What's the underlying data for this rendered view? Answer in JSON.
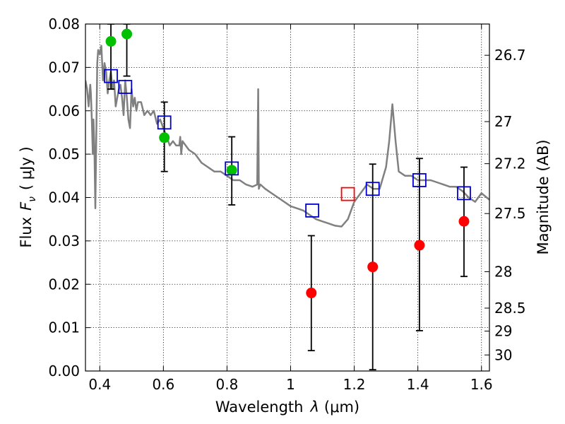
{
  "chart_data": {
    "type": "scatter",
    "xlabel_text": "Wavelength",
    "xlabel_symbol": "λ",
    "xlabel_unit": "(μm)",
    "ylabel_text": "Flux",
    "ylabel_symbol": "F",
    "ylabel_symbol_sub": "ν",
    "ylabel_unit": "( μJy )",
    "y2label": "Magnitude (AB)",
    "xlim": [
      0.355,
      1.625
    ],
    "ylim": [
      0.0,
      0.08
    ],
    "grid": true,
    "xticks": [
      {
        "value": 0.4,
        "label": "0.4"
      },
      {
        "value": 0.6,
        "label": "0.6"
      },
      {
        "value": 0.8,
        "label": "0.8"
      },
      {
        "value": 1.0,
        "label": "1"
      },
      {
        "value": 1.2,
        "label": "1.2"
      },
      {
        "value": 1.4,
        "label": "1.4"
      },
      {
        "value": 1.6,
        "label": "1.6"
      }
    ],
    "yticks": [
      {
        "value": 0.0,
        "label": "0.00"
      },
      {
        "value": 0.01,
        "label": "0.01"
      },
      {
        "value": 0.02,
        "label": "0.02"
      },
      {
        "value": 0.03,
        "label": "0.03"
      },
      {
        "value": 0.04,
        "label": "0.04"
      },
      {
        "value": 0.05,
        "label": "0.05"
      },
      {
        "value": 0.06,
        "label": "0.06"
      },
      {
        "value": 0.07,
        "label": "0.07"
      },
      {
        "value": 0.08,
        "label": "0.08"
      }
    ],
    "y2ticks": [
      {
        "flux": 0.0728,
        "label": "26.7"
      },
      {
        "flux": 0.0575,
        "label": "27"
      },
      {
        "flux": 0.0478,
        "label": "27.2"
      },
      {
        "flux": 0.0363,
        "label": "27.5"
      },
      {
        "flux": 0.0229,
        "label": "28"
      },
      {
        "flux": 0.0145,
        "label": "28.5"
      },
      {
        "flux": 0.0092,
        "label": "29"
      },
      {
        "flux": 0.0037,
        "label": "30"
      }
    ],
    "series": [
      {
        "name": "template SED",
        "kind": "line",
        "color": "#808080",
        "x": [
          0.355,
          0.36,
          0.365,
          0.37,
          0.372,
          0.375,
          0.378,
          0.38,
          0.383,
          0.386,
          0.39,
          0.392,
          0.395,
          0.4,
          0.405,
          0.41,
          0.415,
          0.42,
          0.425,
          0.43,
          0.435,
          0.44,
          0.445,
          0.45,
          0.455,
          0.46,
          0.465,
          0.47,
          0.475,
          0.48,
          0.485,
          0.49,
          0.495,
          0.5,
          0.505,
          0.51,
          0.515,
          0.52,
          0.53,
          0.54,
          0.55,
          0.56,
          0.57,
          0.58,
          0.59,
          0.6,
          0.61,
          0.62,
          0.63,
          0.64,
          0.65,
          0.653,
          0.656,
          0.66,
          0.67,
          0.68,
          0.7,
          0.72,
          0.74,
          0.76,
          0.78,
          0.8,
          0.82,
          0.84,
          0.86,
          0.88,
          0.895,
          0.898,
          0.9,
          0.902,
          0.905,
          0.92,
          0.94,
          0.96,
          0.98,
          1.0,
          1.02,
          1.04,
          1.06,
          1.08,
          1.1,
          1.12,
          1.14,
          1.16,
          1.18,
          1.2,
          1.22,
          1.24,
          1.26,
          1.28,
          1.3,
          1.31,
          1.32,
          1.33,
          1.34,
          1.36,
          1.38,
          1.4,
          1.42,
          1.44,
          1.46,
          1.48,
          1.5,
          1.52,
          1.54,
          1.56,
          1.58,
          1.6,
          1.625
        ],
        "y": [
          0.067,
          0.065,
          0.061,
          0.066,
          0.064,
          0.058,
          0.05,
          0.058,
          0.052,
          0.0375,
          0.06,
          0.071,
          0.074,
          0.073,
          0.075,
          0.067,
          0.071,
          0.069,
          0.064,
          0.067,
          0.069,
          0.065,
          0.067,
          0.061,
          0.063,
          0.065,
          0.066,
          0.063,
          0.059,
          0.067,
          0.063,
          0.058,
          0.056,
          0.065,
          0.061,
          0.063,
          0.06,
          0.062,
          0.062,
          0.059,
          0.06,
          0.059,
          0.06,
          0.057,
          0.058,
          0.056,
          0.054,
          0.052,
          0.053,
          0.052,
          0.052,
          0.054,
          0.05,
          0.053,
          0.052,
          0.051,
          0.05,
          0.048,
          0.047,
          0.046,
          0.046,
          0.045,
          0.044,
          0.044,
          0.043,
          0.0425,
          0.043,
          0.065,
          0.042,
          0.0425,
          0.043,
          0.042,
          0.041,
          0.04,
          0.039,
          0.038,
          0.0375,
          0.037,
          0.036,
          0.035,
          0.0345,
          0.034,
          0.0335,
          0.0333,
          0.035,
          0.039,
          0.041,
          0.043,
          0.042,
          0.042,
          0.047,
          0.053,
          0.0615,
          0.053,
          0.046,
          0.045,
          0.045,
          0.044,
          0.044,
          0.044,
          0.0435,
          0.043,
          0.0425,
          0.0425,
          0.0415,
          0.04,
          0.039,
          0.041,
          0.0395
        ]
      },
      {
        "name": "green detections",
        "kind": "marker",
        "marker": "circle",
        "color": "#00c000",
        "points": [
          {
            "x": 0.435,
            "y": 0.076
          },
          {
            "x": 0.485,
            "y": 0.0777
          },
          {
            "x": 0.603,
            "y": 0.0538
          },
          {
            "x": 0.815,
            "y": 0.0463
          }
        ]
      },
      {
        "name": "red points",
        "kind": "marker",
        "marker": "circle",
        "color": "#ff0000",
        "points": [
          {
            "x": 1.065,
            "y": 0.018
          },
          {
            "x": 1.258,
            "y": 0.024
          },
          {
            "x": 1.405,
            "y": 0.029
          },
          {
            "x": 1.545,
            "y": 0.0345
          }
        ]
      },
      {
        "name": "model photometry",
        "kind": "marker",
        "marker": "square",
        "color": "#0000cc",
        "points": [
          {
            "x": 0.435,
            "y": 0.068
          },
          {
            "x": 0.48,
            "y": 0.0655
          },
          {
            "x": 0.603,
            "y": 0.0573
          },
          {
            "x": 0.815,
            "y": 0.0467
          },
          {
            "x": 1.068,
            "y": 0.037
          },
          {
            "x": 1.258,
            "y": 0.042
          },
          {
            "x": 1.405,
            "y": 0.044
          },
          {
            "x": 1.545,
            "y": 0.041
          }
        ]
      },
      {
        "name": "red square",
        "kind": "marker",
        "marker": "square",
        "color": "#ff0000",
        "points": [
          {
            "x": 1.18,
            "y": 0.0408
          }
        ]
      },
      {
        "name": "error bars",
        "kind": "errorbar",
        "color": "#000000",
        "bars": [
          {
            "x": 0.435,
            "low": 0.065,
            "high": 0.08
          },
          {
            "x": 0.485,
            "low": 0.068,
            "high": 0.08
          },
          {
            "x": 0.603,
            "low": 0.046,
            "high": 0.062
          },
          {
            "x": 0.815,
            "low": 0.0383,
            "high": 0.054
          },
          {
            "x": 1.065,
            "low": 0.0047,
            "high": 0.0312
          },
          {
            "x": 1.258,
            "low": 0.0003,
            "high": 0.0477
          },
          {
            "x": 1.405,
            "low": 0.0093,
            "high": 0.049
          },
          {
            "x": 1.545,
            "low": 0.0218,
            "high": 0.047
          }
        ]
      }
    ]
  }
}
